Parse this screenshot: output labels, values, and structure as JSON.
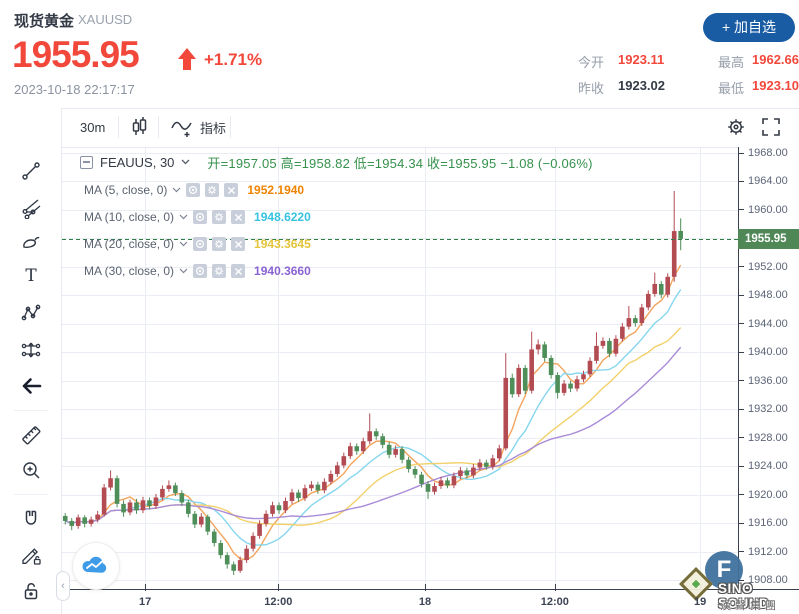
{
  "header": {
    "title": "现货黄金",
    "symbol": "XAUUSD",
    "price": "1955.95",
    "change_percent": "+1.71%",
    "timestamp": "2023-10-18 22:17:17",
    "add_watchlist_label": "+ 加自选",
    "price_color": "#f2483c",
    "stats": [
      {
        "label": "今开",
        "value": "1923.11",
        "color": "#f2483c"
      },
      {
        "label": "昨收",
        "value": "1923.02",
        "color": "#333a45"
      },
      {
        "label": "最高",
        "value": "1962.66",
        "color": "#f2483c"
      },
      {
        "label": "最低",
        "value": "1923.10",
        "color": "#f2483c"
      }
    ]
  },
  "toolbar": {
    "interval": "30m",
    "indicator_label": "指标"
  },
  "legend": {
    "symbol_label": "FEAUUS, 30",
    "ohlc": "开=1957.05  高=1958.82  低=1954.34  收=1955.95  −1.08 (−0.06%)"
  },
  "ma_rows": [
    {
      "label": "MA (5, close, 0)",
      "value": "1952.1940",
      "color": "#f08300"
    },
    {
      "label": "MA (10, close, 0)",
      "value": "1948.6220",
      "color": "#35c3e0"
    },
    {
      "label": "MA (20, close, 0)",
      "value": "1943.3645",
      "color": "#e3c43a"
    },
    {
      "label": "MA (30, close, 0)",
      "value": "1940.3660",
      "color": "#8a63d2"
    }
  ],
  "watermark": {
    "monogram": "F",
    "line1": "SINO SOUND",
    "line2": "漢聲集團"
  },
  "chart_data": {
    "type": "candlestick",
    "symbol": "XAUUSD",
    "interval": "30m",
    "title": "现货黄金 XAUUSD 30m",
    "ylim": [
      1906.6,
      1968.9
    ],
    "grid": true,
    "up_color": "#b34b52",
    "down_color": "#4e8e59",
    "grid_color": "#eaeef4",
    "axis_color": "#39414f",
    "last_price_value": 1955.95,
    "last_price_label": "1955.95",
    "last_price_line_color": "#2e7d44",
    "badge_color": "#4f8757",
    "y_ticks": [
      "1968.00",
      "1964.00",
      "1960.00",
      "1952.00",
      "1948.00",
      "1944.00",
      "1940.00",
      "1936.00",
      "1932.00",
      "1928.00",
      "1924.00",
      "1920.00",
      "1916.00",
      "1912.00",
      "1908.00"
    ],
    "y_tick_values": [
      1968,
      1964,
      1960,
      1952,
      1948,
      1944,
      1940,
      1936,
      1932,
      1928,
      1924,
      1920,
      1916,
      1912,
      1908
    ],
    "x_labels": [
      {
        "label": "17",
        "pos": 0.123
      },
      {
        "label": "12:00",
        "pos": 0.32
      },
      {
        "label": "18",
        "pos": 0.537
      },
      {
        "label": "12:00",
        "pos": 0.729
      },
      {
        "label": "19",
        "pos": 0.944
      }
    ],
    "ma_lines": [
      {
        "period": 5,
        "color": "#f2a45c"
      },
      {
        "period": 10,
        "color": "#85d6ee"
      },
      {
        "period": 20,
        "color": "#f2d06a"
      },
      {
        "period": 30,
        "color": "#a98bd8"
      }
    ],
    "last_candle": {
      "open": 1957.05,
      "high": 1958.82,
      "low": 1954.34,
      "close": 1955.95,
      "change": -1.08,
      "change_pct": "-0.06%"
    },
    "candles": [
      [
        1917.0,
        1917.4,
        1915.8,
        1916.3
      ],
      [
        1916.3,
        1916.7,
        1915.0,
        1915.6
      ],
      [
        1915.6,
        1917.2,
        1915.2,
        1916.8
      ],
      [
        1916.8,
        1917.1,
        1915.4,
        1915.9
      ],
      [
        1915.9,
        1916.9,
        1915.5,
        1916.5
      ],
      [
        1916.5,
        1917.7,
        1916.1,
        1917.2
      ],
      [
        1917.2,
        1921.5,
        1916.9,
        1921.0
      ],
      [
        1921.0,
        1923.4,
        1920.6,
        1922.3
      ],
      [
        1922.3,
        1922.7,
        1918.2,
        1918.7
      ],
      [
        1918.7,
        1919.2,
        1916.9,
        1917.5
      ],
      [
        1917.5,
        1919.3,
        1917.1,
        1918.9
      ],
      [
        1918.9,
        1919.4,
        1917.3,
        1917.8
      ],
      [
        1917.8,
        1919.7,
        1917.4,
        1919.2
      ],
      [
        1919.2,
        1919.6,
        1917.9,
        1918.4
      ],
      [
        1918.4,
        1920.1,
        1918.0,
        1919.6
      ],
      [
        1919.6,
        1921.3,
        1919.2,
        1920.8
      ],
      [
        1920.8,
        1922.0,
        1920.4,
        1921.3
      ],
      [
        1921.3,
        1921.7,
        1919.8,
        1920.2
      ],
      [
        1920.2,
        1920.6,
        1918.4,
        1918.9
      ],
      [
        1918.9,
        1919.3,
        1916.8,
        1917.3
      ],
      [
        1917.3,
        1917.7,
        1915.3,
        1915.8
      ],
      [
        1915.8,
        1917.4,
        1915.4,
        1916.9
      ],
      [
        1916.9,
        1917.2,
        1914.3,
        1914.8
      ],
      [
        1914.8,
        1915.2,
        1912.7,
        1913.2
      ],
      [
        1913.2,
        1913.6,
        1911.0,
        1911.5
      ],
      [
        1911.5,
        1911.9,
        1909.6,
        1910.2
      ],
      [
        1910.2,
        1910.6,
        1908.7,
        1909.3
      ],
      [
        1909.3,
        1911.3,
        1909.0,
        1910.8
      ],
      [
        1910.8,
        1912.9,
        1910.4,
        1912.4
      ],
      [
        1912.4,
        1914.7,
        1912.0,
        1914.2
      ],
      [
        1914.2,
        1916.4,
        1913.8,
        1915.9
      ],
      [
        1915.9,
        1917.8,
        1915.5,
        1917.3
      ],
      [
        1917.3,
        1919.0,
        1916.9,
        1918.5
      ],
      [
        1918.5,
        1918.9,
        1917.3,
        1917.8
      ],
      [
        1917.8,
        1919.6,
        1917.4,
        1919.1
      ],
      [
        1919.1,
        1920.8,
        1918.7,
        1920.3
      ],
      [
        1920.3,
        1920.7,
        1919.0,
        1919.5
      ],
      [
        1919.5,
        1921.4,
        1919.1,
        1920.9
      ],
      [
        1920.9,
        1921.9,
        1920.5,
        1921.4
      ],
      [
        1921.4,
        1921.8,
        1920.1,
        1920.6
      ],
      [
        1920.6,
        1922.3,
        1920.2,
        1921.8
      ],
      [
        1921.8,
        1923.4,
        1921.4,
        1922.9
      ],
      [
        1922.9,
        1924.6,
        1922.5,
        1924.1
      ],
      [
        1924.1,
        1925.9,
        1923.7,
        1925.4
      ],
      [
        1925.4,
        1927.3,
        1925.0,
        1926.8
      ],
      [
        1926.8,
        1927.2,
        1925.6,
        1926.1
      ],
      [
        1926.1,
        1928.0,
        1925.7,
        1927.5
      ],
      [
        1927.5,
        1931.4,
        1927.1,
        1928.9
      ],
      [
        1928.9,
        1929.3,
        1927.7,
        1928.2
      ],
      [
        1928.2,
        1928.6,
        1926.5,
        1927.0
      ],
      [
        1927.0,
        1927.4,
        1925.1,
        1925.6
      ],
      [
        1925.6,
        1926.9,
        1925.2,
        1926.4
      ],
      [
        1926.4,
        1926.8,
        1924.4,
        1924.9
      ],
      [
        1924.9,
        1925.3,
        1923.1,
        1923.6
      ],
      [
        1923.6,
        1924.0,
        1922.3,
        1922.8
      ],
      [
        1922.8,
        1923.2,
        1921.0,
        1921.5
      ],
      [
        1921.5,
        1921.9,
        1919.4,
        1920.4
      ],
      [
        1920.4,
        1921.7,
        1920.0,
        1921.2
      ],
      [
        1921.2,
        1922.5,
        1920.8,
        1922.0
      ],
      [
        1922.0,
        1922.4,
        1920.9,
        1921.3
      ],
      [
        1921.3,
        1923.1,
        1920.9,
        1922.6
      ],
      [
        1922.6,
        1923.9,
        1922.2,
        1923.4
      ],
      [
        1923.4,
        1923.8,
        1922.3,
        1922.7
      ],
      [
        1922.7,
        1924.3,
        1922.3,
        1923.8
      ],
      [
        1923.8,
        1925.0,
        1923.4,
        1924.5
      ],
      [
        1924.5,
        1924.9,
        1923.5,
        1923.9
      ],
      [
        1923.9,
        1925.6,
        1923.5,
        1925.1
      ],
      [
        1925.1,
        1927.0,
        1924.7,
        1926.5
      ],
      [
        1926.5,
        1939.9,
        1926.2,
        1936.4
      ],
      [
        1936.4,
        1937.0,
        1933.6,
        1934.1
      ],
      [
        1934.1,
        1938.3,
        1933.7,
        1937.8
      ],
      [
        1937.8,
        1938.2,
        1934.1,
        1934.6
      ],
      [
        1934.6,
        1942.9,
        1934.2,
        1940.4
      ],
      [
        1940.4,
        1941.8,
        1939.7,
        1941.1
      ],
      [
        1941.1,
        1941.5,
        1938.7,
        1939.2
      ],
      [
        1939.2,
        1939.6,
        1936.3,
        1936.8
      ],
      [
        1936.8,
        1937.2,
        1933.5,
        1934.3
      ],
      [
        1934.3,
        1936.1,
        1933.9,
        1935.6
      ],
      [
        1935.6,
        1936.0,
        1934.4,
        1934.9
      ],
      [
        1934.9,
        1936.7,
        1934.5,
        1936.2
      ],
      [
        1936.2,
        1937.4,
        1935.8,
        1936.9
      ],
      [
        1936.9,
        1939.3,
        1936.5,
        1938.8
      ],
      [
        1938.8,
        1942.8,
        1938.4,
        1940.9
      ],
      [
        1940.9,
        1942.1,
        1940.5,
        1941.6
      ],
      [
        1941.6,
        1942.0,
        1939.3,
        1939.8
      ],
      [
        1939.8,
        1942.4,
        1939.4,
        1941.9
      ],
      [
        1941.9,
        1944.1,
        1941.5,
        1943.6
      ],
      [
        1943.6,
        1946.5,
        1943.2,
        1944.8
      ],
      [
        1944.8,
        1945.2,
        1943.6,
        1944.1
      ],
      [
        1944.1,
        1946.8,
        1943.7,
        1946.3
      ],
      [
        1946.3,
        1948.7,
        1945.9,
        1948.2
      ],
      [
        1948.2,
        1951.2,
        1947.8,
        1949.6
      ],
      [
        1949.6,
        1950.0,
        1947.6,
        1948.1
      ],
      [
        1948.1,
        1951.1,
        1947.7,
        1950.6
      ],
      [
        1950.6,
        1962.66,
        1949.9,
        1957.03
      ],
      [
        1957.05,
        1958.82,
        1954.34,
        1955.95
      ]
    ]
  }
}
